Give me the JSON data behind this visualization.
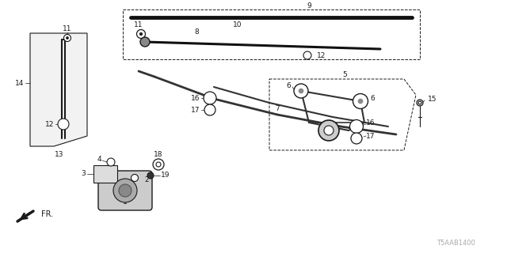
{
  "bg_color": "#ffffff",
  "line_color": "#1a1a1a",
  "watermark": "T5AAB1400",
  "figsize": [
    6.4,
    3.2
  ],
  "dpi": 100
}
